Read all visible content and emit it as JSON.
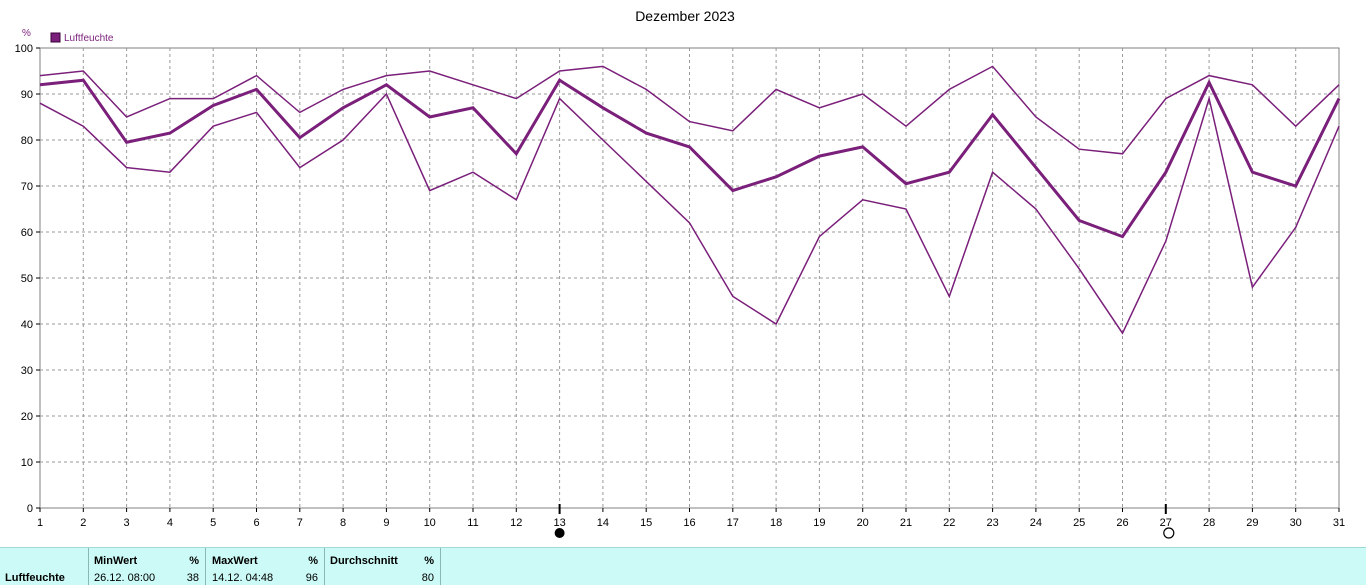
{
  "chart_data": {
    "type": "line",
    "title": "Dezember 2023",
    "ylabel": "%",
    "legend": {
      "label": "Luftfeuchte",
      "placement": "top-left"
    },
    "x": [
      1,
      2,
      3,
      4,
      5,
      6,
      7,
      8,
      9,
      10,
      11,
      12,
      13,
      14,
      15,
      16,
      17,
      18,
      19,
      20,
      21,
      22,
      23,
      24,
      25,
      26,
      27,
      28,
      29,
      30,
      31
    ],
    "xlim": [
      1,
      31
    ],
    "ylim": [
      0,
      100
    ],
    "yticks": [
      0,
      10,
      20,
      30,
      40,
      50,
      60,
      70,
      80,
      90,
      100
    ],
    "grid": true,
    "series": [
      {
        "role": "max",
        "values": [
          94,
          95,
          85,
          89,
          89,
          94,
          86,
          91,
          94,
          95,
          92,
          89,
          95,
          96,
          91,
          84,
          82,
          91,
          87,
          90,
          83,
          91,
          96,
          85,
          78,
          77,
          89,
          94,
          92,
          83,
          92
        ]
      },
      {
        "role": "mean",
        "values": [
          92,
          93,
          79.5,
          81.5,
          87.5,
          91,
          80.5,
          87,
          92,
          85,
          87,
          77,
          93,
          87,
          81.5,
          78.5,
          69,
          72,
          76.5,
          78.5,
          70.5,
          73,
          85.5,
          74,
          62.5,
          59,
          73,
          92.5,
          73,
          70,
          89
        ]
      },
      {
        "role": "min",
        "values": [
          88,
          83,
          74,
          73,
          83,
          86,
          74,
          80,
          90,
          69,
          73,
          67,
          89,
          80,
          71,
          62,
          46,
          40,
          59,
          67,
          65,
          46,
          73,
          65,
          52,
          38,
          58,
          89,
          48,
          61,
          83
        ]
      }
    ],
    "color": "#7a1f7a",
    "moon_markers": {
      "full_moon_day": 27,
      "new_moon_day": 13
    }
  },
  "stats": {
    "row_label": "Luftfeuchte",
    "min": {
      "header": "MinWert",
      "unit": "%",
      "datetime": "26.12.  08:00",
      "value": "38"
    },
    "max": {
      "header": "MaxWert",
      "unit": "%",
      "datetime": "14.12.  04:48",
      "value": "96"
    },
    "avg": {
      "header": "Durchschnitt",
      "unit": "%",
      "value": "80"
    }
  }
}
